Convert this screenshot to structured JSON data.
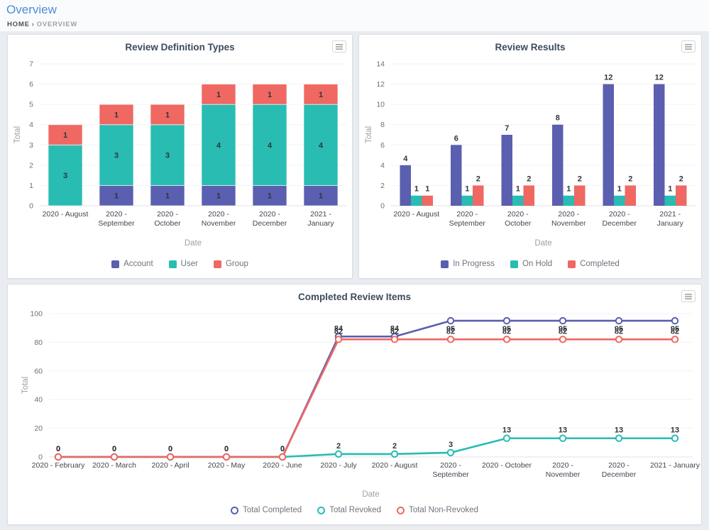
{
  "page": {
    "title": "Overview",
    "breadcrumb": {
      "home": "HOME",
      "separator": "›",
      "current": "OVERVIEW"
    }
  },
  "colors": {
    "purple": "#5a5faf",
    "teal": "#28bcb2",
    "red": "#ef6862",
    "chart_title": "#3d4b5c",
    "tick_text": "#6b7076",
    "category_text": "#42474e",
    "value_label": "#30353a",
    "axis_label": "#9aa0a6",
    "grid_line": "#f1f3f5",
    "axis_line": "#e0e3e7",
    "legend_text": "#6e757c",
    "header_title": "#4a90d2"
  },
  "chart_data": [
    {
      "type": "bar",
      "stacked": true,
      "title": "Review Definition Types",
      "xlabel": "Date",
      "ylabel": "Total",
      "ylim": [
        0,
        7
      ],
      "ytick_step": 1,
      "grid": true,
      "legend_position": "bottom",
      "legend_shape": "square",
      "categories": [
        [
          "2020 - August"
        ],
        [
          "2020 -",
          "September"
        ],
        [
          "2020 -",
          "October"
        ],
        [
          "2020 -",
          "November"
        ],
        [
          "2020 -",
          "December"
        ],
        [
          "2021 -",
          "January"
        ]
      ],
      "series": [
        {
          "name": "Account",
          "color": "#5a5faf",
          "values": [
            0,
            1,
            1,
            1,
            1,
            1
          ]
        },
        {
          "name": "User",
          "color": "#28bcb2",
          "values": [
            3,
            3,
            3,
            4,
            4,
            4
          ]
        },
        {
          "name": "Group",
          "color": "#ef6862",
          "values": [
            1,
            1,
            1,
            1,
            1,
            1
          ]
        }
      ]
    },
    {
      "type": "bar",
      "stacked": false,
      "title": "Review Results",
      "xlabel": "Date",
      "ylabel": "Total",
      "ylim": [
        0,
        14
      ],
      "ytick_step": 2,
      "grid": true,
      "legend_position": "bottom",
      "legend_shape": "square",
      "categories": [
        [
          "2020 - August"
        ],
        [
          "2020 -",
          "September"
        ],
        [
          "2020 -",
          "October"
        ],
        [
          "2020 -",
          "November"
        ],
        [
          "2020 -",
          "December"
        ],
        [
          "2021 -",
          "January"
        ]
      ],
      "series": [
        {
          "name": "In Progress",
          "color": "#5a5faf",
          "values": [
            4,
            6,
            7,
            8,
            12,
            12
          ]
        },
        {
          "name": "On Hold",
          "color": "#28bcb2",
          "values": [
            1,
            1,
            1,
            1,
            1,
            1
          ]
        },
        {
          "name": "Completed",
          "color": "#ef6862",
          "values": [
            1,
            2,
            2,
            2,
            2,
            2
          ]
        }
      ]
    },
    {
      "type": "line",
      "title": "Completed Review Items",
      "xlabel": "Date",
      "ylabel": "Total",
      "ylim": [
        0,
        100
      ],
      "ytick_step": 20,
      "grid": true,
      "legend_position": "bottom",
      "legend_shape": "circle",
      "marker": "hollow-circle",
      "categories": [
        [
          "2020 - February"
        ],
        [
          "2020 - March"
        ],
        [
          "2020 - April"
        ],
        [
          "2020 - May"
        ],
        [
          "2020 - June"
        ],
        [
          "2020 - July"
        ],
        [
          "2020 - August"
        ],
        [
          "2020 -",
          "September"
        ],
        [
          "2020 - October"
        ],
        [
          "2020 -",
          "November"
        ],
        [
          "2020 -",
          "December"
        ],
        [
          "2021 - January"
        ]
      ],
      "series": [
        {
          "name": "Total Completed",
          "color": "#5a5faf",
          "values": [
            0,
            0,
            0,
            0,
            0,
            84,
            84,
            95,
            95,
            95,
            95,
            95
          ]
        },
        {
          "name": "Total Revoked",
          "color": "#28bcb2",
          "values": [
            0,
            0,
            0,
            0,
            0,
            2,
            2,
            3,
            13,
            13,
            13,
            13
          ]
        },
        {
          "name": "Total Non-Revoked",
          "color": "#ef6862",
          "values": [
            0,
            0,
            0,
            0,
            0,
            82,
            82,
            82,
            82,
            82,
            82,
            82
          ]
        }
      ]
    }
  ]
}
